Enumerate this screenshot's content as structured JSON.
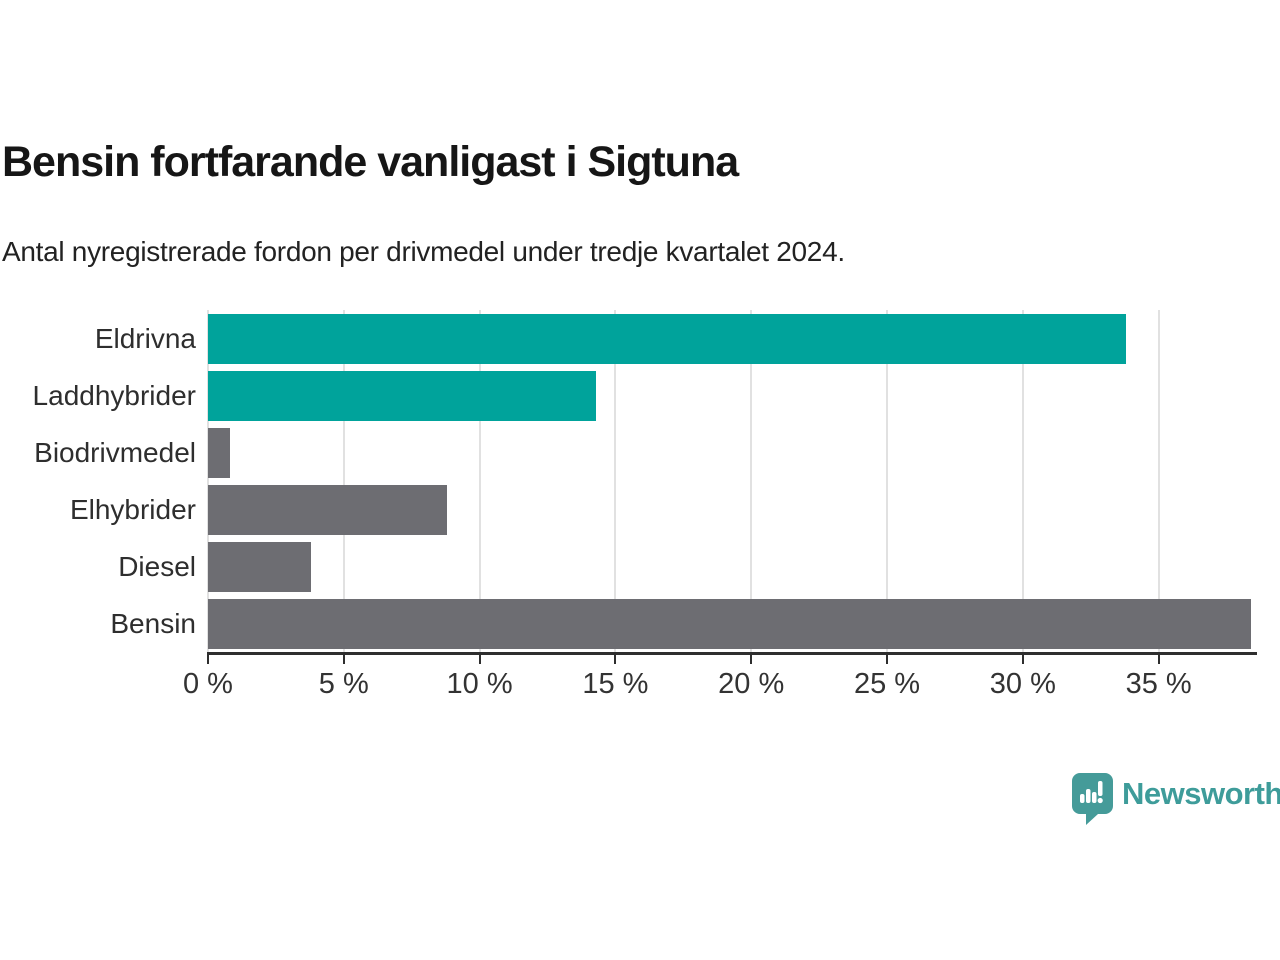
{
  "header": {
    "title": "Bensin fortfarande vanligast i Sigtuna",
    "subtitle": "Antal nyregistrerade fordon per drivmedel under tredje kvartalet 2024."
  },
  "chart_data": {
    "type": "bar",
    "orientation": "horizontal",
    "title": "Bensin fortfarande vanligast i Sigtuna",
    "subtitle": "Antal nyregistrerade fordon per drivmedel under tredje kvartalet 2024.",
    "categories": [
      "Eldrivna",
      "Laddhybrider",
      "Biodrivmedel",
      "Elhybrider",
      "Diesel",
      "Bensin"
    ],
    "values": [
      33.8,
      14.3,
      0.8,
      8.8,
      3.8,
      38.4
    ],
    "unit": "%",
    "bar_colors": [
      "#00a39b",
      "#00a39b",
      "#6d6d72",
      "#6d6d72",
      "#6d6d72",
      "#6d6d72"
    ],
    "highlight_color": "#00a39b",
    "default_color": "#6d6d72",
    "xlabel": "",
    "ylabel": "",
    "xlim": [
      0,
      38.4
    ],
    "x_tick_values": [
      0,
      5,
      10,
      15,
      20,
      25,
      30,
      35
    ],
    "x_tick_labels": [
      "0 %",
      "5 %",
      "10 %",
      "15 %",
      "20 %",
      "25 %",
      "30 %",
      "35 %"
    ],
    "grid": "vertical",
    "grid_color": "#e1e1e1",
    "axis_color": "#2e2e2e",
    "legend": "none"
  },
  "footer": {
    "brand": "Newsworthy",
    "brand_color": "#3e9c9a",
    "logo_icon": "newsworthy-speech-bubble-chart-icon"
  }
}
